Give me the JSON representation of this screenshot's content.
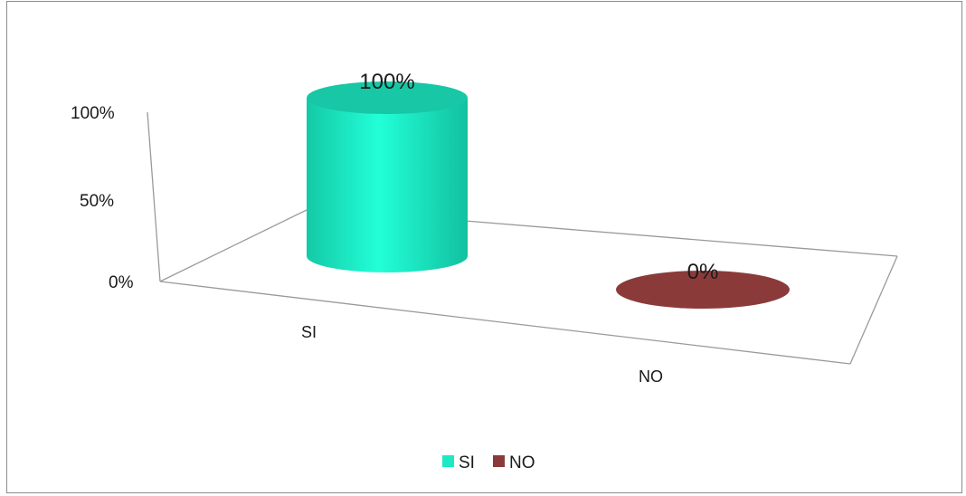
{
  "chart_data": {
    "type": "bar",
    "style": "3d-cylinder",
    "categories": [
      "SI",
      "NO"
    ],
    "values": [
      100,
      0
    ],
    "value_labels": [
      "100%",
      "0%"
    ],
    "y_ticks": [
      "0%",
      "50%",
      "100%"
    ],
    "ylim": [
      0,
      100
    ],
    "colors": [
      "#1de9c4",
      "#8b3a3a"
    ],
    "legend": [
      "SI",
      "NO"
    ],
    "legend_position": "bottom",
    "grid": false,
    "title": "",
    "xlabel": "",
    "ylabel": ""
  }
}
